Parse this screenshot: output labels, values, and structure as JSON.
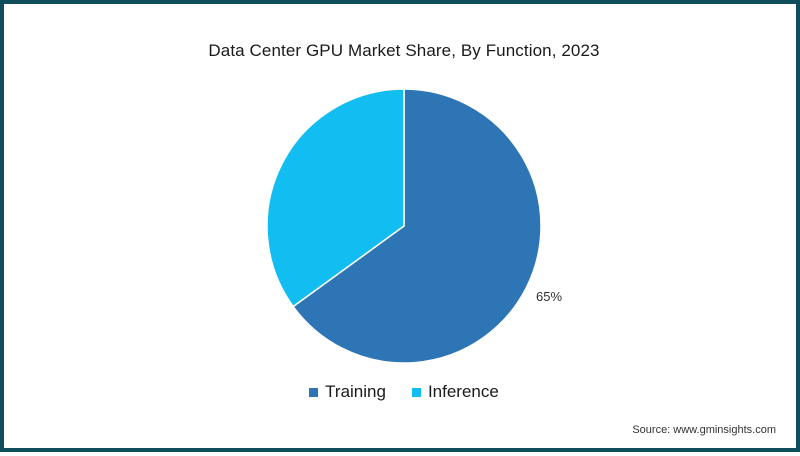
{
  "chart_data": {
    "type": "pie",
    "title": "Data Center GPU Market Share, By Function, 2023",
    "slices": [
      {
        "name": "Training",
        "value": 65,
        "color": "#2e75b6",
        "label": "65%"
      },
      {
        "name": "Inference",
        "value": 35,
        "color": "#12bdf2",
        "label": ""
      }
    ],
    "legend_position": "bottom"
  },
  "source": "Source: www.gminsights.com",
  "colors": {
    "frame": "#0f4c5c",
    "slice_border": "#ffffff"
  }
}
